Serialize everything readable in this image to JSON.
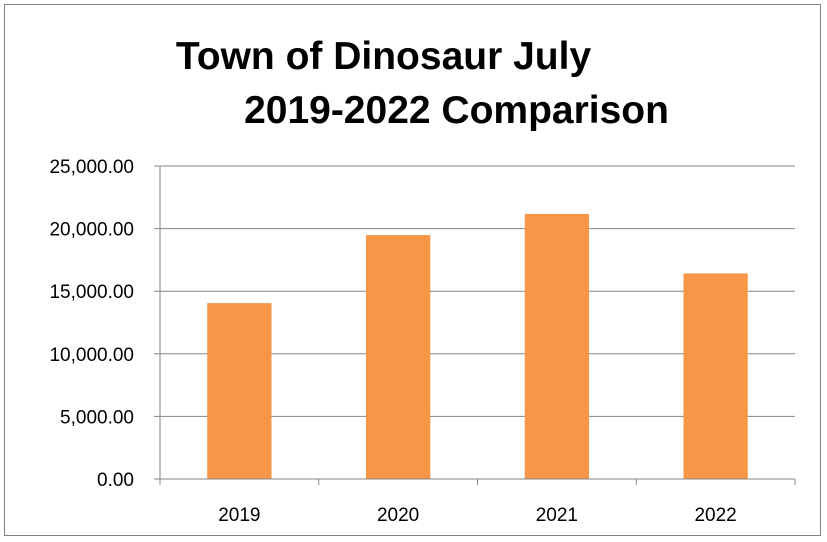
{
  "chart_data": {
    "type": "bar",
    "title_lines": [
      "Town of Dinosaur July",
      "2019-2022 Comparison"
    ],
    "categories": [
      "2019",
      "2020",
      "2021",
      "2022"
    ],
    "values": [
      14050,
      19480,
      21170,
      16420
    ],
    "ylim": [
      0,
      25000
    ],
    "yticks": [
      0,
      5000,
      10000,
      15000,
      20000,
      25000
    ],
    "ytick_labels": [
      "0.00",
      "5,000.00",
      "10,000.00",
      "15,000.00",
      "20,000.00",
      "25,000.00"
    ],
    "xlabel": "",
    "ylabel": "",
    "grid": true,
    "legend": "none",
    "bar_color": "#f79646",
    "grid_color": "#868686"
  }
}
